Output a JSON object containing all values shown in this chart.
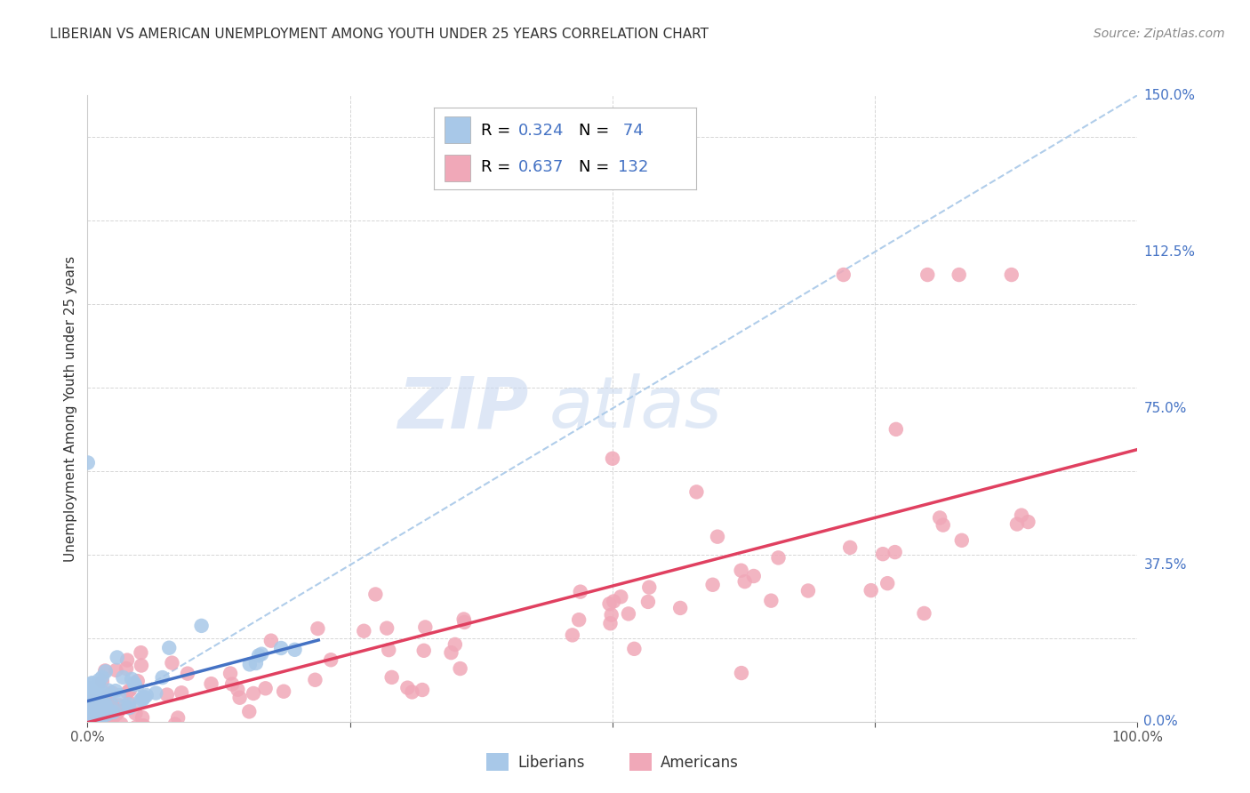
{
  "title": "LIBERIAN VS AMERICAN UNEMPLOYMENT AMONG YOUTH UNDER 25 YEARS CORRELATION CHART",
  "source": "Source: ZipAtlas.com",
  "ylabel": "Unemployment Among Youth under 25 years",
  "xlim": [
    0.0,
    1.0
  ],
  "ylim": [
    0.0,
    1.5
  ],
  "xticks": [
    0.0,
    0.25,
    0.5,
    0.75,
    1.0
  ],
  "xticklabels": [
    "0.0%",
    "",
    "",
    "",
    "100.0%"
  ],
  "yticks": [
    0.0,
    0.375,
    0.75,
    1.125,
    1.5
  ],
  "yticklabels": [
    "0.0%",
    "37.5%",
    "75.0%",
    "112.5%",
    "150.0%"
  ],
  "liberian_color": "#a8c8e8",
  "american_color": "#f0a8b8",
  "liberian_line_color": "#4472c4",
  "american_line_color": "#e04060",
  "ref_line_color": "#a8c8e8",
  "axis_tick_color": "#4472c4",
  "watermark_zip_color": "#c8d8ec",
  "watermark_atlas_color": "#c8d8ec",
  "background_color": "#ffffff",
  "liberian_N": 74,
  "american_N": 132,
  "liberian_R": 0.324,
  "american_R": 0.637,
  "title_fontsize": 11,
  "axis_label_fontsize": 11,
  "tick_fontsize": 11,
  "legend_fontsize": 13,
  "source_fontsize": 10,
  "legend_value_color": "#4472c4"
}
